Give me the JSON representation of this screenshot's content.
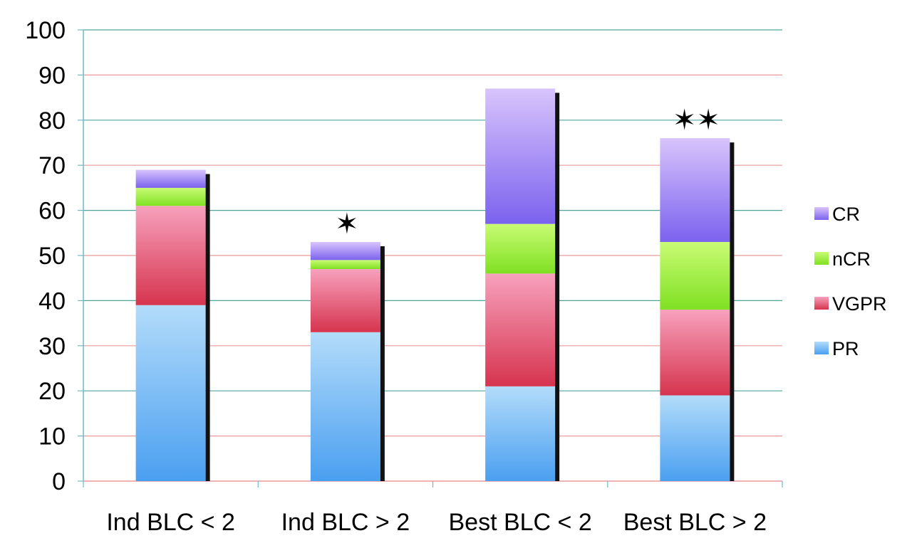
{
  "chart_data": {
    "type": "bar",
    "stacked": true,
    "title": "",
    "xlabel": "",
    "ylabel": "",
    "ylim": [
      0,
      100
    ],
    "yticks": [
      0,
      10,
      20,
      30,
      40,
      50,
      60,
      70,
      80,
      90,
      100
    ],
    "categories": [
      "Ind BLC < 2",
      "Ind BLC > 2",
      "Best BLC < 2",
      "Best BLC > 2"
    ],
    "series": [
      {
        "name": "PR",
        "values": [
          39,
          33,
          21,
          19
        ],
        "colors": [
          "#4a9ff0",
          "#b3dcfa"
        ]
      },
      {
        "name": "VGPR",
        "values": [
          22,
          14,
          25,
          19
        ],
        "colors": [
          "#d6344e",
          "#f7a1bd"
        ]
      },
      {
        "name": "nCR",
        "values": [
          4,
          2,
          11,
          15
        ],
        "colors": [
          "#7fe022",
          "#c9fb74"
        ]
      },
      {
        "name": "CR",
        "values": [
          4,
          4,
          30,
          23
        ],
        "colors": [
          "#7b62ee",
          "#d8c4fc"
        ]
      }
    ],
    "legend": {
      "position": "right",
      "order": [
        "CR",
        "nCR",
        "VGPR",
        "PR"
      ]
    },
    "annotations": [
      {
        "category": "Ind BLC > 2",
        "text": "*"
      },
      {
        "category": "Best BLC > 2",
        "text": "**"
      }
    ],
    "grid_colors": [
      "#4fa59d",
      "#eb9a9a"
    ],
    "axis_color": "#6fb9c9"
  }
}
